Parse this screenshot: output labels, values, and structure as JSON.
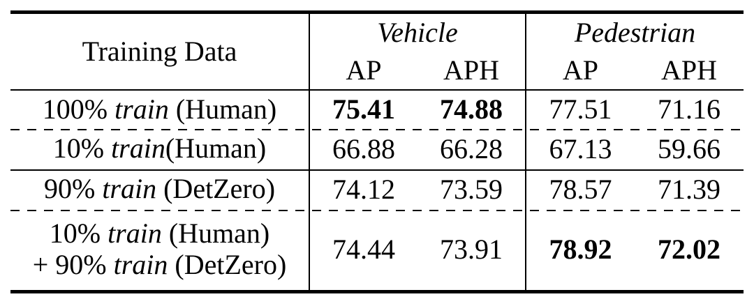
{
  "page": {
    "background_color": "#ffffff",
    "text_color": "#000000"
  },
  "table": {
    "header": {
      "training_data_label": "Training Data",
      "groups": [
        {
          "label": "Vehicle",
          "subcolumns": [
            "AP",
            "APH"
          ]
        },
        {
          "label": "Pedestrian",
          "subcolumns": [
            "AP",
            "APH"
          ]
        }
      ]
    },
    "rows": [
      {
        "separator_before": "none",
        "label_lines": [
          [
            {
              "text": "100% "
            },
            {
              "text": "train",
              "italic": true
            },
            {
              "text": " (Human)"
            }
          ]
        ],
        "values": [
          {
            "text": "75.41",
            "bold": true
          },
          {
            "text": "74.88",
            "bold": true
          },
          {
            "text": "77.51",
            "bold": false
          },
          {
            "text": "71.16",
            "bold": false
          }
        ]
      },
      {
        "separator_before": "dashed",
        "label_lines": [
          [
            {
              "text": "10% "
            },
            {
              "text": "train",
              "italic": true
            },
            {
              "text": "(Human)"
            }
          ]
        ],
        "values": [
          {
            "text": "66.88",
            "bold": false
          },
          {
            "text": "66.28",
            "bold": false
          },
          {
            "text": "67.13",
            "bold": false
          },
          {
            "text": "59.66",
            "bold": false
          }
        ]
      },
      {
        "separator_before": "solid",
        "label_lines": [
          [
            {
              "text": "90% "
            },
            {
              "text": "train",
              "italic": true
            },
            {
              "text": " (DetZero)"
            }
          ]
        ],
        "values": [
          {
            "text": "74.12",
            "bold": false
          },
          {
            "text": "73.59",
            "bold": false
          },
          {
            "text": "78.57",
            "bold": false
          },
          {
            "text": "71.39",
            "bold": false
          }
        ]
      },
      {
        "separator_before": "dashed",
        "label_lines": [
          [
            {
              "text": "10% "
            },
            {
              "text": "train",
              "italic": true
            },
            {
              "text": " (Human)"
            }
          ],
          [
            {
              "text": "+ 90% "
            },
            {
              "text": "train",
              "italic": true
            },
            {
              "text": " (DetZero)"
            }
          ]
        ],
        "values": [
          {
            "text": "74.44",
            "bold": false
          },
          {
            "text": "73.91",
            "bold": false
          },
          {
            "text": "78.92",
            "bold": true
          },
          {
            "text": "72.02",
            "bold": true
          }
        ]
      }
    ]
  }
}
